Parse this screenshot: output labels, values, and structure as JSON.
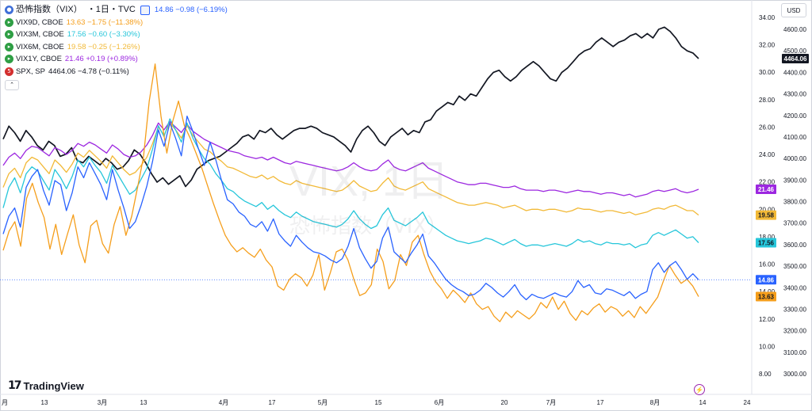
{
  "header": {
    "title": "恐怖指数（VIX）",
    "interval": "・1日・TVC",
    "main_quote": "14.86 −0.98 (−6.19%)",
    "main_color": "#2962ff"
  },
  "legend_rows": [
    {
      "symbol": "VIX9D, CBOE",
      "quote": "13.63 −1.75 (−11.38%)",
      "color": "#f59e1b",
      "icon": "green-circle-icon"
    },
    {
      "symbol": "VIX3M, CBOE",
      "quote": "17.56 −0.60 (−3.30%)",
      "color": "#26c6da",
      "icon": "green-circle-icon"
    },
    {
      "symbol": "VIX6M, CBOE",
      "quote": "19.58 −0.25 (−1.26%)",
      "color": "#f2b937",
      "icon": "green-circle-icon"
    },
    {
      "symbol": "VIX1Y, CBOE",
      "quote": "21.46 +0.19 (+0.89%)",
      "color": "#9c27e0",
      "icon": "green-circle-icon"
    },
    {
      "symbol": "SPX, SP",
      "quote": "4464.06 −4.78 (−0.11%)",
      "color": "#131722",
      "icon": "red-500-badge-icon"
    }
  ],
  "currency_button": "USD",
  "watermark": {
    "symbol": "VIX, 1日",
    "name": "恐怖指数（VIX）"
  },
  "brand": {
    "name": "TradingView",
    "mark": "17"
  },
  "chart_data": {
    "type": "line",
    "x_tick_labels": [
      "月",
      "13",
      "3月",
      "13",
      "4月",
      "17",
      "5月",
      "15",
      "6月",
      "20",
      "7月",
      "17",
      "8月",
      "14",
      "24"
    ],
    "left_axis": {
      "ticks": [
        8,
        10,
        12,
        14,
        16,
        18,
        20,
        22,
        24,
        26,
        28,
        30,
        32,
        34
      ]
    },
    "right_axis": {
      "ticks": [
        3000,
        3100,
        3200,
        3300,
        3400,
        3500,
        3600,
        3700,
        3800,
        3900,
        4000,
        4100,
        4200,
        4300,
        4400,
        4500,
        4600
      ]
    },
    "series": [
      {
        "name": "恐怖指数（VIX）",
        "axis": "left",
        "color": "#2962ff",
        "last": 14.86,
        "values": [
          18.2,
          19.5,
          20.1,
          18.7,
          21.6,
          22.4,
          22.9,
          21.4,
          20.3,
          22.1,
          21.8,
          19.9,
          21.2,
          23.1,
          22.3,
          23.4,
          22.6,
          21.8,
          20.7,
          22.9,
          21.4,
          20.1,
          18.6,
          19.1,
          20.3,
          21.7,
          23.5,
          25.8,
          24.6,
          26.3,
          25.2,
          23.9,
          26.8,
          25.7,
          24.4,
          23.2,
          24.9,
          23.6,
          22.1,
          20.7,
          20.4,
          19.8,
          19.5,
          18.9,
          18.7,
          19.1,
          18.4,
          19.3,
          18.2,
          17.7,
          17.3,
          18.1,
          17.6,
          17.2,
          16.9,
          16.8,
          16.6,
          16.3,
          16.1,
          16.4,
          17.3,
          18.6,
          17.2,
          16.4,
          15.7,
          16.2,
          17.9,
          18.7,
          16.9,
          16.5,
          16.1,
          16.8,
          17.4,
          18.2,
          16.6,
          16.1,
          15.5,
          14.9,
          14.5,
          14.2,
          14.0,
          13.7,
          13.8,
          14.1,
          14.6,
          14.3,
          13.9,
          13.6,
          14.0,
          14.5,
          13.8,
          13.4,
          13.8,
          13.6,
          13.5,
          13.7,
          13.9,
          13.7,
          13.6,
          14.0,
          14.8,
          14.3,
          14.5,
          13.9,
          13.8,
          14.2,
          14.1,
          13.9,
          13.7,
          14.0,
          13.5,
          13.8,
          14.0,
          15.6,
          16.1,
          15.4,
          15.9,
          16.2,
          15.6,
          14.9,
          15.3,
          14.86
        ]
      },
      {
        "name": "VIX9D",
        "axis": "left",
        "color": "#f59e1b",
        "last": 13.63,
        "values": [
          17.0,
          18.4,
          19.1,
          17.3,
          20.8,
          21.9,
          20.5,
          19.4,
          17.1,
          18.9,
          16.7,
          18.2,
          19.6,
          17.4,
          16.1,
          18.8,
          19.2,
          17.5,
          16.8,
          18.9,
          20.2,
          18.1,
          19.5,
          21.6,
          23.8,
          27.9,
          30.6,
          26.8,
          24.1,
          26.4,
          27.9,
          26.1,
          25.2,
          24.1,
          23.0,
          21.7,
          20.4,
          19.2,
          18.1,
          17.4,
          16.9,
          17.2,
          16.8,
          16.5,
          17.1,
          16.3,
          15.8,
          14.4,
          14.1,
          14.9,
          15.3,
          15.0,
          14.4,
          15.2,
          16.7,
          14.1,
          15.4,
          16.9,
          17.1,
          16.3,
          14.9,
          13.7,
          13.9,
          14.5,
          17.1,
          16.2,
          14.2,
          14.8,
          16.7,
          15.9,
          17.6,
          18.1,
          16.7,
          15.5,
          14.7,
          14.2,
          13.5,
          14.1,
          13.7,
          13.2,
          13.9,
          13.1,
          12.7,
          12.9,
          12.2,
          11.8,
          12.5,
          12.1,
          12.6,
          12.3,
          12.0,
          12.4,
          13.2,
          12.8,
          13.6,
          12.7,
          13.3,
          12.4,
          11.9,
          12.6,
          12.3,
          12.8,
          13.1,
          12.5,
          12.9,
          12.7,
          12.2,
          12.6,
          12.1,
          12.9,
          12.4,
          13.0,
          13.6,
          14.8,
          15.9,
          15.2,
          14.6,
          14.9,
          14.4,
          13.63
        ]
      },
      {
        "name": "VIX3M",
        "axis": "left",
        "color": "#26c6da",
        "last": 17.56,
        "values": [
          20.1,
          21.6,
          22.3,
          21.2,
          22.6,
          23.1,
          22.8,
          22.1,
          21.4,
          22.9,
          22.3,
          21.5,
          22.4,
          23.6,
          23.1,
          23.8,
          23.2,
          22.7,
          21.9,
          23.2,
          22.5,
          21.8,
          21.1,
          21.4,
          22.2,
          23.0,
          24.4,
          26.1,
          25.3,
          26.6,
          25.8,
          24.9,
          26.3,
          25.2,
          24.4,
          23.7,
          23.3,
          22.6,
          22.1,
          21.5,
          21.3,
          20.9,
          20.6,
          20.4,
          20.2,
          20.5,
          20.0,
          20.3,
          19.9,
          19.6,
          19.4,
          19.8,
          19.5,
          19.3,
          19.1,
          19.0,
          18.9,
          18.8,
          18.7,
          18.9,
          19.3,
          19.9,
          19.3,
          18.9,
          18.6,
          18.8,
          19.6,
          20.1,
          19.2,
          19.0,
          18.8,
          19.1,
          19.4,
          19.8,
          19.0,
          18.7,
          18.4,
          18.1,
          17.9,
          17.7,
          17.6,
          17.5,
          17.6,
          17.7,
          17.9,
          17.8,
          17.6,
          17.4,
          17.6,
          17.8,
          17.5,
          17.3,
          17.4,
          17.4,
          17.3,
          17.4,
          17.5,
          17.4,
          17.3,
          17.5,
          17.8,
          17.6,
          17.7,
          17.5,
          17.4,
          17.6,
          17.5,
          17.5,
          17.4,
          17.5,
          17.2,
          17.4,
          17.5,
          18.1,
          18.3,
          18.1,
          18.3,
          18.5,
          18.2,
          17.9,
          18.0,
          17.56
        ]
      },
      {
        "name": "VIX6M",
        "axis": "left",
        "color": "#f2b937",
        "last": 19.58,
        "values": [
          21.6,
          22.6,
          23.0,
          22.3,
          23.4,
          23.8,
          23.6,
          23.1,
          22.6,
          23.6,
          23.2,
          22.7,
          23.3,
          24.1,
          23.8,
          24.3,
          23.9,
          23.5,
          23.0,
          23.9,
          23.4,
          22.9,
          22.5,
          22.7,
          23.2,
          23.8,
          24.8,
          26.0,
          25.4,
          26.3,
          25.8,
          25.2,
          26.1,
          25.4,
          24.9,
          24.4,
          24.2,
          23.8,
          23.5,
          23.1,
          23.0,
          22.8,
          22.6,
          22.4,
          22.3,
          22.5,
          22.2,
          22.4,
          22.1,
          21.9,
          21.8,
          22.1,
          21.9,
          21.8,
          21.7,
          21.6,
          21.5,
          21.4,
          21.3,
          21.4,
          21.7,
          22.1,
          21.7,
          21.5,
          21.3,
          21.4,
          21.9,
          22.3,
          21.7,
          21.5,
          21.4,
          21.6,
          21.8,
          22.0,
          21.5,
          21.3,
          21.1,
          20.9,
          20.7,
          20.5,
          20.4,
          20.3,
          20.3,
          20.4,
          20.5,
          20.4,
          20.3,
          20.1,
          20.2,
          20.3,
          20.1,
          19.9,
          20.0,
          20.0,
          19.9,
          20.0,
          20.0,
          19.9,
          19.8,
          19.9,
          20.1,
          20.0,
          20.0,
          19.9,
          19.8,
          19.9,
          19.9,
          19.8,
          19.7,
          19.8,
          19.6,
          19.7,
          19.8,
          20.0,
          20.1,
          20.0,
          20.2,
          20.3,
          20.1,
          19.9,
          19.9,
          19.58
        ]
      },
      {
        "name": "VIX1Y",
        "axis": "left",
        "color": "#9c27e0",
        "last": 21.46,
        "values": [
          23.2,
          23.8,
          24.1,
          23.7,
          24.3,
          24.6,
          24.5,
          24.2,
          23.9,
          24.5,
          24.3,
          24.0,
          24.3,
          24.8,
          24.6,
          24.9,
          24.7,
          24.4,
          24.1,
          24.7,
          24.4,
          24.0,
          23.8,
          23.9,
          24.2,
          24.7,
          25.4,
          26.3,
          25.8,
          26.4,
          26.0,
          25.6,
          26.2,
          25.7,
          25.4,
          25.1,
          24.9,
          24.7,
          24.5,
          24.3,
          24.2,
          24.1,
          23.9,
          23.8,
          23.7,
          23.8,
          23.6,
          23.8,
          23.6,
          23.4,
          23.3,
          23.5,
          23.4,
          23.3,
          23.2,
          23.1,
          23.0,
          22.9,
          22.8,
          22.9,
          23.1,
          23.4,
          23.1,
          22.9,
          22.8,
          22.9,
          23.3,
          23.6,
          23.1,
          22.9,
          22.8,
          23.0,
          23.2,
          23.4,
          23.0,
          22.8,
          22.6,
          22.4,
          22.2,
          22.0,
          21.9,
          21.8,
          21.8,
          21.9,
          21.9,
          21.8,
          21.7,
          21.6,
          21.6,
          21.7,
          21.5,
          21.4,
          21.4,
          21.4,
          21.3,
          21.4,
          21.4,
          21.3,
          21.2,
          21.3,
          21.4,
          21.3,
          21.3,
          21.2,
          21.1,
          21.2,
          21.2,
          21.1,
          21.0,
          21.1,
          20.9,
          21.0,
          21.1,
          21.3,
          21.4,
          21.3,
          21.4,
          21.5,
          21.3,
          21.2,
          21.3,
          21.46
        ]
      },
      {
        "name": "SPX",
        "axis": "right",
        "color": "#131722",
        "last": 4464.06,
        "values": [
          4090,
          4150,
          4120,
          4080,
          4130,
          4100,
          4060,
          4040,
          4080,
          4060,
          4010,
          4020,
          4050,
          3990,
          3980,
          4010,
          3990,
          3970,
          4000,
          3980,
          3950,
          3960,
          3990,
          4040,
          4020,
          3980,
          3930,
          3890,
          3910,
          3880,
          3900,
          3920,
          3870,
          3900,
          3950,
          3970,
          3990,
          4000,
          4010,
          4030,
          4050,
          4070,
          4100,
          4110,
          4090,
          4130,
          4120,
          4140,
          4110,
          4090,
          4110,
          4130,
          4140,
          4140,
          4150,
          4140,
          4120,
          4110,
          4100,
          4080,
          4060,
          4030,
          4090,
          4130,
          4150,
          4120,
          4080,
          4060,
          4100,
          4120,
          4140,
          4110,
          4130,
          4120,
          4170,
          4180,
          4220,
          4240,
          4260,
          4250,
          4290,
          4270,
          4300,
          4290,
          4330,
          4370,
          4400,
          4410,
          4380,
          4360,
          4380,
          4410,
          4430,
          4450,
          4430,
          4400,
          4370,
          4360,
          4400,
          4420,
          4450,
          4480,
          4500,
          4510,
          4540,
          4560,
          4540,
          4520,
          4540,
          4550,
          4570,
          4580,
          4560,
          4580,
          4560,
          4600,
          4610,
          4590,
          4560,
          4520,
          4500,
          4490,
          4464
        ]
      }
    ]
  }
}
